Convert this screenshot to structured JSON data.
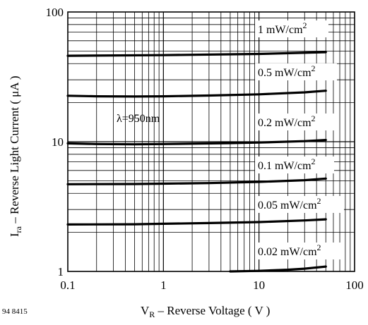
{
  "figure_id": "94 8415",
  "chart_data": {
    "type": "line",
    "x_scale": "log",
    "y_scale": "log",
    "xlim": [
      0.1,
      100
    ],
    "ylim": [
      1,
      100
    ],
    "grid": true,
    "xlabel": {
      "main": "V",
      "sub": "R",
      "rest": " – Reverse Voltage ( V )"
    },
    "ylabel": {
      "main": "I",
      "sub": "ra",
      "rest": " – Reverse Light Current ( μA )"
    },
    "x_ticks": [
      {
        "value": 0.1,
        "label": "0.1"
      },
      {
        "value": 1,
        "label": "1"
      },
      {
        "value": 10,
        "label": "10"
      },
      {
        "value": 100,
        "label": "100"
      }
    ],
    "y_ticks": [
      {
        "value": 1,
        "label": "1"
      },
      {
        "value": 10,
        "label": "10"
      },
      {
        "value": 100,
        "label": "100"
      }
    ],
    "annotation": "λ=950nm",
    "series": [
      {
        "name": "1 mW/cm",
        "superscript": "2",
        "x": [
          0.1,
          1,
          10,
          50
        ],
        "y": [
          46,
          46.5,
          47.5,
          49
        ]
      },
      {
        "name": "0.5 mW/cm",
        "superscript": "2",
        "x": [
          0.1,
          0.2,
          0.5,
          1,
          3,
          10,
          30,
          50
        ],
        "y": [
          22.6,
          22.4,
          22.3,
          22.4,
          22.7,
          23.2,
          24.0,
          24.7
        ]
      },
      {
        "name": "0.2 mW/cm",
        "superscript": "2",
        "x": [
          0.1,
          0.2,
          0.5,
          1,
          5,
          10,
          30,
          50
        ],
        "y": [
          9.7,
          9.6,
          9.55,
          9.6,
          9.75,
          9.85,
          10.1,
          10.3
        ]
      },
      {
        "name": "0.1 mW/cm",
        "superscript": "2",
        "x": [
          0.1,
          0.5,
          1,
          3,
          10,
          30,
          50
        ],
        "y": [
          4.7,
          4.72,
          4.75,
          4.8,
          4.9,
          5.05,
          5.2
        ]
      },
      {
        "name": "0.05 mW/cm",
        "superscript": "2",
        "x": [
          0.1,
          0.5,
          1,
          3,
          10,
          30,
          50
        ],
        "y": [
          2.3,
          2.31,
          2.33,
          2.36,
          2.4,
          2.47,
          2.52
        ]
      },
      {
        "name": "0.02 mW/cm",
        "superscript": "2",
        "x": [
          5,
          10,
          20,
          30,
          50
        ],
        "y": [
          1.0,
          1.01,
          1.03,
          1.05,
          1.09
        ]
      }
    ]
  }
}
